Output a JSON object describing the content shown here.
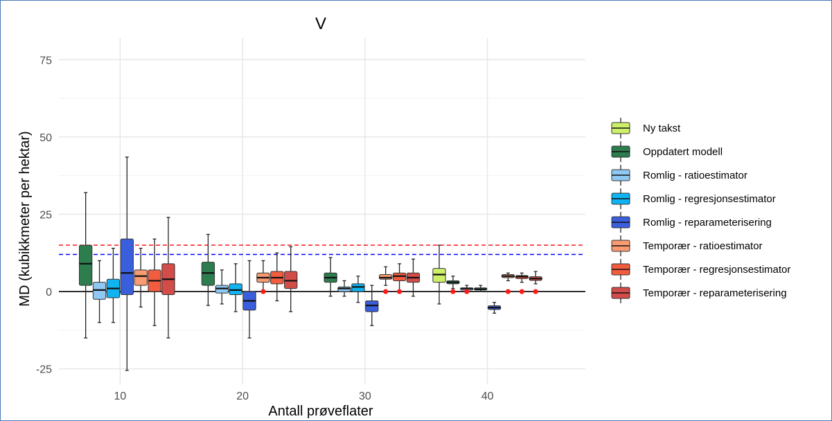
{
  "chart_data": {
    "type": "boxplot",
    "title": "V",
    "xlabel": "Antall prøveflater",
    "ylabel": "MD (kubikkmeter per hektar)",
    "ylim": [
      -30,
      82
    ],
    "xlim": [
      5,
      48
    ],
    "y_ticks": [
      -25,
      0,
      25,
      50,
      75
    ],
    "x_ticks": [
      10,
      20,
      30,
      40
    ],
    "grid": true,
    "legend_position": "right",
    "reference_lines": [
      {
        "y": 0,
        "color": "#000000",
        "style": "solid"
      },
      {
        "y": 15,
        "color": "#ff0000",
        "style": "dashed"
      },
      {
        "y": 12,
        "color": "#0000ff",
        "style": "dashed"
      }
    ],
    "series": [
      {
        "name": "Ny takst",
        "color": "#cdf06a"
      },
      {
        "name": "Oppdatert modell",
        "color": "#2e7d4f"
      },
      {
        "name": "Romlig - ratioestimator",
        "color": "#8fc8f3"
      },
      {
        "name": "Romlig - regresjonsestimator",
        "color": "#10b4f2"
      },
      {
        "name": "Romlig - reparameterisering",
        "color": "#3a5fdc"
      },
      {
        "name": "Temporær - ratioestimator",
        "color": "#f89a72"
      },
      {
        "name": "Temporær - regresjonsestimator",
        "color": "#f25c3f"
      },
      {
        "name": "Temporær - reparameterisering",
        "color": "#d24c4a"
      }
    ],
    "boxes": [
      {
        "x": 10,
        "series": 1,
        "min": -15,
        "q1": 2,
        "median": 9,
        "q3": 15,
        "max": 32
      },
      {
        "x": 10,
        "series": 2,
        "min": -10,
        "q1": -2.5,
        "median": 0.5,
        "q3": 3,
        "max": 10
      },
      {
        "x": 10,
        "series": 3,
        "min": -10,
        "q1": -2,
        "median": 1,
        "q3": 4,
        "max": 14
      },
      {
        "x": 10,
        "series": 4,
        "min": -25.5,
        "q1": -1,
        "median": 6,
        "q3": 17,
        "max": 43.5
      },
      {
        "x": 10,
        "series": 5,
        "min": -5,
        "q1": 2,
        "median": 5,
        "q3": 7,
        "max": 14
      },
      {
        "x": 10,
        "series": 6,
        "min": -11,
        "q1": 0,
        "median": 3.5,
        "q3": 7,
        "max": 17
      },
      {
        "x": 10,
        "series": 7,
        "min": -15,
        "q1": -1,
        "median": 4,
        "q3": 9,
        "max": 24
      },
      {
        "x": 20,
        "series": 1,
        "min": -4.5,
        "q1": 2,
        "median": 6,
        "q3": 9.5,
        "max": 18.5
      },
      {
        "x": 20,
        "series": 2,
        "min": -4,
        "q1": -0.5,
        "median": 1,
        "q3": 2,
        "max": 7
      },
      {
        "x": 20,
        "series": 3,
        "min": -6.5,
        "q1": -1,
        "median": 0.5,
        "q3": 2.5,
        "max": 9
      },
      {
        "x": 20,
        "series": 4,
        "min": -15,
        "q1": -6,
        "median": -3,
        "q3": 0,
        "max": 10
      },
      {
        "x": 20,
        "series": 5,
        "min": 0,
        "q1": 3,
        "median": 4.5,
        "q3": 6,
        "max": 10
      },
      {
        "x": 20,
        "series": 6,
        "min": -3,
        "q1": 2.5,
        "median": 4.5,
        "q3": 6.5,
        "max": 12.5
      },
      {
        "x": 20,
        "series": 7,
        "min": -6.5,
        "q1": 1,
        "median": 3.5,
        "q3": 6.5,
        "max": 14.5
      },
      {
        "x": 30,
        "series": 1,
        "min": -1.5,
        "q1": 3,
        "median": 4.5,
        "q3": 6,
        "max": 11
      },
      {
        "x": 30,
        "series": 2,
        "min": -1.5,
        "q1": 0,
        "median": 1,
        "q3": 1.5,
        "max": 3.5
      },
      {
        "x": 30,
        "series": 3,
        "min": -3.5,
        "q1": 0,
        "median": 1.5,
        "q3": 2.5,
        "max": 5
      },
      {
        "x": 30,
        "series": 4,
        "min": -11,
        "q1": -6.5,
        "median": -4.5,
        "q3": -3,
        "max": 2
      },
      {
        "x": 30,
        "series": 5,
        "min": 2,
        "q1": 4,
        "median": 4.5,
        "q3": 5.5,
        "max": 8
      },
      {
        "x": 30,
        "series": 6,
        "min": 0,
        "q1": 3.5,
        "median": 5,
        "q3": 6,
        "max": 9
      },
      {
        "x": 30,
        "series": 7,
        "min": -1.5,
        "q1": 3,
        "median": 4.5,
        "q3": 6,
        "max": 10.5
      },
      {
        "x": 40,
        "series": 0,
        "min": -4,
        "q1": 3,
        "median": 5.5,
        "q3": 7.5,
        "max": 15
      },
      {
        "x": 40,
        "series": 1,
        "min": 1,
        "q1": 2.5,
        "median": 3,
        "q3": 3.5,
        "max": 5
      },
      {
        "x": 40,
        "series": 2,
        "min": -0.5,
        "q1": 0.5,
        "median": 1,
        "q3": 1.2,
        "max": 2
      },
      {
        "x": 40,
        "series": 3,
        "min": 0,
        "q1": 0.5,
        "median": 0.8,
        "q3": 1.2,
        "max": 2
      },
      {
        "x": 40,
        "series": 4,
        "min": -7,
        "q1": -5.8,
        "median": -5.2,
        "q3": -4.6,
        "max": -3.5
      },
      {
        "x": 40,
        "series": 5,
        "min": 3.5,
        "q1": 4.5,
        "median": 5,
        "q3": 5.5,
        "max": 6
      },
      {
        "x": 40,
        "series": 6,
        "min": 3,
        "q1": 4.2,
        "median": 4.8,
        "q3": 5.2,
        "max": 6
      },
      {
        "x": 40,
        "series": 7,
        "min": 2.5,
        "q1": 3.6,
        "median": 4.2,
        "q3": 4.8,
        "max": 6.5
      }
    ],
    "points": [
      {
        "x": 20,
        "series": 5,
        "y": 0
      },
      {
        "x": 30,
        "series": 5,
        "y": 0
      },
      {
        "x": 30,
        "series": 6,
        "y": 0
      },
      {
        "x": 40,
        "series": 1,
        "y": 0
      },
      {
        "x": 40,
        "series": 2,
        "y": 0
      },
      {
        "x": 40,
        "series": 5,
        "y": 0
      },
      {
        "x": 40,
        "series": 6,
        "y": 0
      },
      {
        "x": 40,
        "series": 7,
        "y": 0
      }
    ],
    "point_color": "#ff1a1a"
  }
}
